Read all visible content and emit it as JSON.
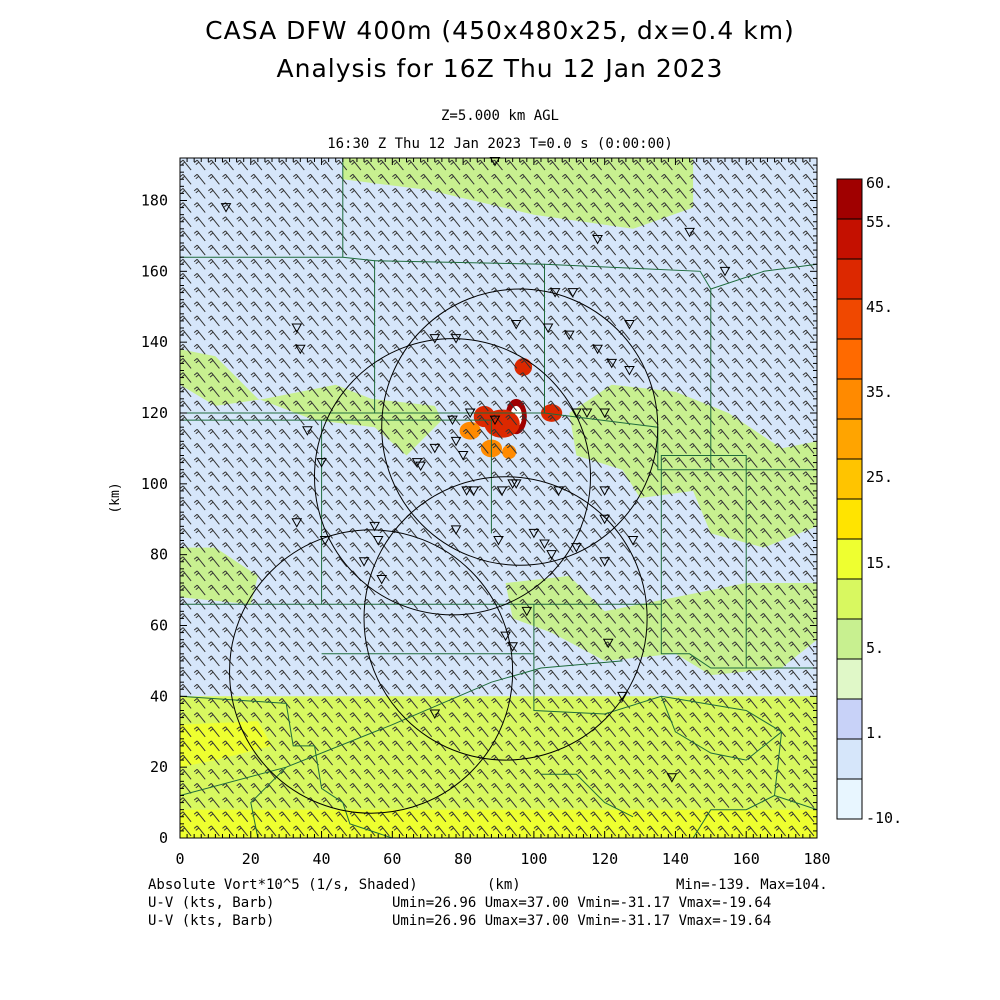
{
  "titles": {
    "line1": "CASA DFW 400m (450x480x25, dx=0.4 km)",
    "line2": "Analysis for 16Z Thu 12 Jan 2023",
    "level": "Z=5.000 km AGL",
    "time": "16:30 Z Thu 12 Jan 2023   T=0.0 s (0:00:00)"
  },
  "footer": {
    "shaded_label": "Absolute Vort*10^5 (1/s, Shaded)",
    "xunit": "(km)",
    "minmax": "Min=-139. Max=104.",
    "barb1_label": "U-V (kts, Barb)",
    "barb1_stats": "Umin=26.96 Umax=37.00 Vmin=-31.17 Vmax=-19.64",
    "barb2_label": "U-V (kts, Barb)",
    "barb2_stats": "Umin=26.96 Umax=37.00 Vmin=-31.17 Vmax=-19.64"
  },
  "chart_data": {
    "type": "heatmap",
    "title": "CASA DFW 400m (450x480x25, dx=0.4 km)",
    "subtitle": "Analysis for 16Z Thu 12 Jan 2023",
    "xlabel": "(km)",
    "ylabel": "(km)",
    "xlim": [
      0,
      180
    ],
    "ylim": [
      0,
      192
    ],
    "x_ticks": [
      "0",
      "20",
      "40",
      "60",
      "80",
      "100",
      "120",
      "140",
      "160",
      "180"
    ],
    "y_ticks": [
      "0",
      "20",
      "40",
      "60",
      "80",
      "100",
      "120",
      "140",
      "160",
      "180"
    ],
    "x_tick_values": [
      0,
      20,
      40,
      60,
      80,
      100,
      120,
      140,
      160,
      180
    ],
    "y_tick_values": [
      0,
      20,
      40,
      60,
      80,
      100,
      120,
      140,
      160,
      180
    ],
    "colorbar": {
      "labels": [
        "60.",
        "55.",
        "45.",
        "35.",
        "25.",
        "15.",
        "5.",
        "1.",
        "-10."
      ],
      "colors": [
        "#a00000",
        "#c41000",
        "#dc2800",
        "#f04800",
        "#ff6a00",
        "#ff8a00",
        "#ffa400",
        "#ffc400",
        "#ffe400",
        "#eeff30",
        "#d8f860",
        "#c8f090",
        "#e0f8c8",
        "#c8d2f8",
        "#d6e6fa",
        "#e8f6ff"
      ]
    },
    "field_stats": {
      "min": -139,
      "max": 104
    },
    "wind": {
      "umin": 26.96,
      "umax": 37.0,
      "vmin": -31.17,
      "vmax": -19.64,
      "units": "kts"
    },
    "radar_rings": [
      {
        "cx": 96,
        "cy": 116,
        "r": 39
      },
      {
        "cx": 77,
        "cy": 102,
        "r": 39
      },
      {
        "cx": 54,
        "cy": 47,
        "r": 40
      },
      {
        "cx": 92,
        "cy": 62,
        "r": 40
      }
    ],
    "regions": [
      {
        "kind": "green",
        "points": [
          [
            46,
            192
          ],
          [
            145,
            192
          ],
          [
            145,
            178
          ],
          [
            128,
            172
          ],
          [
            100,
            176
          ],
          [
            70,
            183
          ],
          [
            46,
            186
          ]
        ]
      },
      {
        "kind": "green",
        "points": [
          [
            0,
            138
          ],
          [
            10,
            136
          ],
          [
            22,
            124
          ],
          [
            38,
            118
          ],
          [
            55,
            116
          ],
          [
            64,
            108
          ],
          [
            74,
            118
          ],
          [
            72,
            122
          ],
          [
            54,
            124
          ],
          [
            44,
            128
          ],
          [
            24,
            124
          ],
          [
            10,
            122
          ],
          [
            0,
            128
          ]
        ]
      },
      {
        "kind": "green",
        "points": [
          [
            110,
            120
          ],
          [
            122,
            128
          ],
          [
            140,
            126
          ],
          [
            155,
            120
          ],
          [
            170,
            110
          ],
          [
            180,
            112
          ],
          [
            180,
            88
          ],
          [
            165,
            82
          ],
          [
            150,
            86
          ],
          [
            145,
            98
          ],
          [
            130,
            96
          ],
          [
            125,
            104
          ],
          [
            112,
            108
          ]
        ]
      },
      {
        "kind": "green",
        "points": [
          [
            92,
            72
          ],
          [
            110,
            74
          ],
          [
            120,
            64
          ],
          [
            140,
            68
          ],
          [
            160,
            72
          ],
          [
            180,
            72
          ],
          [
            180,
            56
          ],
          [
            170,
            48
          ],
          [
            150,
            46
          ],
          [
            140,
            52
          ],
          [
            120,
            50
          ],
          [
            105,
            58
          ],
          [
            94,
            62
          ]
        ]
      },
      {
        "kind": "green",
        "points": [
          [
            0,
            82
          ],
          [
            10,
            82
          ],
          [
            22,
            74
          ],
          [
            20,
            66
          ],
          [
            0,
            68
          ]
        ]
      },
      {
        "kind": "yellowgreen",
        "points": [
          [
            0,
            40
          ],
          [
            180,
            40
          ],
          [
            180,
            0
          ],
          [
            0,
            0
          ]
        ]
      },
      {
        "kind": "yellow",
        "points": [
          [
            0,
            8
          ],
          [
            180,
            8
          ],
          [
            180,
            0
          ],
          [
            0,
            0
          ]
        ]
      },
      {
        "kind": "yellow",
        "points": [
          [
            0,
            32
          ],
          [
            22,
            33
          ],
          [
            26,
            26
          ],
          [
            10,
            22
          ],
          [
            0,
            20
          ]
        ]
      },
      {
        "kind": "yellow",
        "points": [
          [
            128,
            6
          ],
          [
            150,
            5
          ],
          [
            165,
            4
          ],
          [
            180,
            7
          ],
          [
            180,
            0
          ],
          [
            120,
            0
          ]
        ]
      }
    ],
    "blobs": [
      {
        "x": 95,
        "y": 119,
        "rx": 3,
        "ry": 5,
        "kind": "core"
      },
      {
        "x": 91,
        "y": 117,
        "rx": 5,
        "ry": 4,
        "kind": "red"
      },
      {
        "x": 86,
        "y": 119,
        "rx": 3,
        "ry": 3,
        "kind": "red"
      },
      {
        "x": 105,
        "y": 120,
        "rx": 3,
        "ry": 2.5,
        "kind": "red"
      },
      {
        "x": 97,
        "y": 133,
        "rx": 2.5,
        "ry": 2.5,
        "kind": "red"
      },
      {
        "x": 88,
        "y": 110,
        "rx": 3,
        "ry": 2.5,
        "kind": "orange"
      },
      {
        "x": 82,
        "y": 115,
        "rx": 3,
        "ry": 2.5,
        "kind": "orange"
      },
      {
        "x": 93,
        "y": 109,
        "rx": 2,
        "ry": 2,
        "kind": "orange"
      }
    ],
    "stations": [
      [
        13,
        178
      ],
      [
        89,
        191
      ],
      [
        118,
        169
      ],
      [
        144,
        171
      ],
      [
        33,
        144
      ],
      [
        34,
        138
      ],
      [
        72,
        141
      ],
      [
        78,
        141
      ],
      [
        95,
        145
      ],
      [
        106,
        154
      ],
      [
        111,
        154
      ],
      [
        104,
        144
      ],
      [
        110,
        142
      ],
      [
        127,
        145
      ],
      [
        118,
        138
      ],
      [
        122,
        134
      ],
      [
        127,
        132
      ],
      [
        112,
        120
      ],
      [
        115,
        120
      ],
      [
        120,
        120
      ],
      [
        82,
        120
      ],
      [
        77,
        118
      ],
      [
        78,
        112
      ],
      [
        80,
        108
      ],
      [
        89,
        118
      ],
      [
        67,
        106
      ],
      [
        68,
        105
      ],
      [
        72,
        110
      ],
      [
        36,
        115
      ],
      [
        40,
        106
      ],
      [
        81,
        98
      ],
      [
        83,
        98
      ],
      [
        91,
        98
      ],
      [
        94,
        100
      ],
      [
        95,
        100
      ],
      [
        107,
        98
      ],
      [
        120,
        98
      ],
      [
        120,
        90
      ],
      [
        33,
        89
      ],
      [
        55,
        88
      ],
      [
        56,
        84
      ],
      [
        78,
        87
      ],
      [
        90,
        84
      ],
      [
        100,
        86
      ],
      [
        103,
        83
      ],
      [
        112,
        82
      ],
      [
        128,
        84
      ],
      [
        120,
        78
      ],
      [
        41,
        84
      ],
      [
        52,
        78
      ],
      [
        57,
        73
      ],
      [
        98,
        64
      ],
      [
        92,
        57
      ],
      [
        94,
        54
      ],
      [
        105,
        80
      ],
      [
        121,
        55
      ],
      [
        125,
        40
      ],
      [
        72,
        35
      ],
      [
        139,
        17
      ],
      [
        154,
        160
      ]
    ],
    "borders": [
      [
        [
          46,
          192
        ],
        [
          46,
          164
        ],
        [
          0,
          164
        ]
      ],
      [
        [
          46,
          164
        ],
        [
          55,
          163
        ],
        [
          55,
          120
        ],
        [
          0,
          120
        ]
      ],
      [
        [
          55,
          163
        ],
        [
          103,
          162
        ],
        [
          103,
          120
        ],
        [
          55,
          120
        ]
      ],
      [
        [
          103,
          162
        ],
        [
          147,
          160
        ],
        [
          150,
          155
        ],
        [
          165,
          160
        ],
        [
          180,
          162
        ]
      ],
      [
        [
          150,
          155
        ],
        [
          150,
          104
        ],
        [
          180,
          104
        ]
      ],
      [
        [
          103,
          120
        ],
        [
          135,
          116
        ],
        [
          135,
          104
        ],
        [
          150,
          104
        ]
      ],
      [
        [
          0,
          120
        ],
        [
          0,
          118
        ],
        [
          40,
          118
        ],
        [
          40,
          66
        ],
        [
          0,
          66
        ]
      ],
      [
        [
          40,
          118
        ],
        [
          88,
          118
        ],
        [
          88,
          86
        ]
      ],
      [
        [
          40,
          66
        ],
        [
          100,
          66
        ],
        [
          100,
          52
        ],
        [
          40,
          52
        ]
      ],
      [
        [
          100,
          66
        ],
        [
          136,
          66
        ],
        [
          136,
          52
        ],
        [
          144,
          52
        ],
        [
          150,
          48
        ],
        [
          180,
          48
        ]
      ],
      [
        [
          136,
          66
        ],
        [
          136,
          108
        ],
        [
          160,
          108
        ],
        [
          160,
          48
        ]
      ],
      [
        [
          0,
          40
        ],
        [
          30,
          38
        ],
        [
          32,
          26
        ],
        [
          38,
          26
        ],
        [
          40,
          14
        ],
        [
          46,
          10
        ],
        [
          48,
          4
        ],
        [
          60,
          0
        ]
      ],
      [
        [
          0,
          12
        ],
        [
          30,
          20
        ],
        [
          60,
          32
        ],
        [
          88,
          44
        ],
        [
          102,
          48
        ],
        [
          125,
          50
        ]
      ],
      [
        [
          30,
          20
        ],
        [
          20,
          10
        ],
        [
          22,
          0
        ]
      ],
      [
        [
          100,
          52
        ],
        [
          100,
          36
        ],
        [
          120,
          35
        ],
        [
          136,
          40
        ],
        [
          160,
          36
        ],
        [
          170,
          30
        ],
        [
          168,
          12
        ],
        [
          180,
          8
        ]
      ],
      [
        [
          102,
          18
        ],
        [
          112,
          18
        ],
        [
          120,
          10
        ],
        [
          128,
          6
        ]
      ],
      [
        [
          168,
          12
        ],
        [
          160,
          8
        ],
        [
          150,
          8
        ],
        [
          145,
          0
        ]
      ],
      [
        [
          136,
          40
        ],
        [
          140,
          30
        ],
        [
          150,
          24
        ],
        [
          160,
          22
        ],
        [
          170,
          30
        ]
      ]
    ]
  }
}
